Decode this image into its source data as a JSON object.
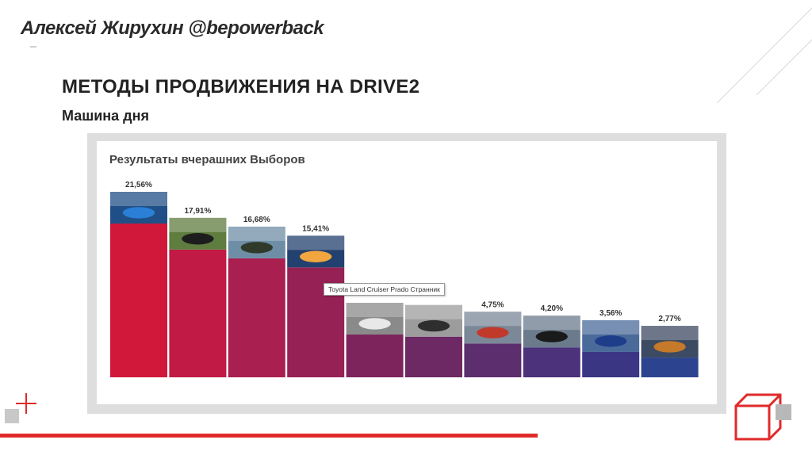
{
  "header": {
    "author": "Алексей Жирухин @bepowerback",
    "title": "МЕТОДЫ ПРОДВИЖЕНИЯ НА DRIVE2",
    "subtitle": "Машина дня"
  },
  "poll": {
    "title": "Результаты вчерашних Выборов",
    "tooltip": "Toyota Land Cruiser Prado Странник"
  },
  "colors": {
    "accent_red": "#e02a2a",
    "bar_gradient": [
      "#d1183a",
      "#c01a45",
      "#a91f4f",
      "#952155",
      "#7e245d",
      "#6c2963",
      "#5c2e6e",
      "#4b327a",
      "#3b3684",
      "#2c448f"
    ]
  },
  "chart_data": {
    "type": "bar",
    "title": "Результаты вчерашних Выборов",
    "categories": [
      "1",
      "2",
      "3",
      "4",
      "5",
      "6",
      "7",
      "8",
      "9",
      "10"
    ],
    "values": [
      21.56,
      17.91,
      16.68,
      15.41,
      6.0,
      5.7,
      4.75,
      4.2,
      3.56,
      2.77
    ],
    "labels": [
      "21,56%",
      "17,91%",
      "16,68%",
      "15,41%",
      "",
      "",
      "4,75%",
      "4,20%",
      "3,56%",
      "2,77%"
    ],
    "xlabel": "",
    "ylabel": "",
    "grid": false,
    "legend": "none"
  }
}
